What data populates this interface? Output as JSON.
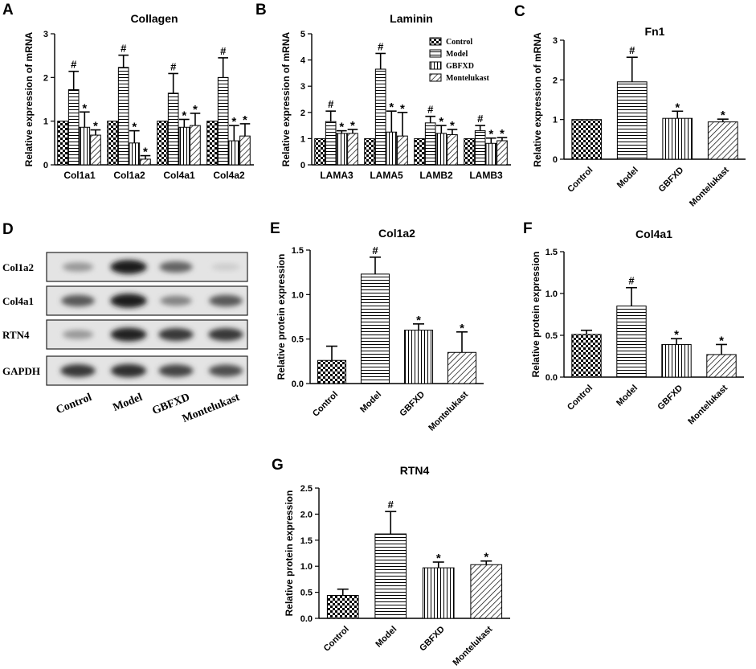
{
  "patterns": [
    "checker",
    "hlines",
    "vlines",
    "diag"
  ],
  "chart_data": [
    {
      "panel": "A",
      "type": "bar",
      "title": "Collagen",
      "ylabel": "Relative expression of mRNA",
      "ylim": [
        0,
        3
      ],
      "yticks": [
        "0",
        "1",
        "2",
        "3"
      ],
      "categories": [
        "Col1a1",
        "Col1a2",
        "Col4a1",
        "Col4a2"
      ],
      "series": [
        {
          "name": "Control",
          "values": [
            1.0,
            1.0,
            1.0,
            1.0
          ],
          "errors": [
            0,
            0,
            0,
            0
          ],
          "marks": [
            "",
            "",
            "",
            ""
          ]
        },
        {
          "name": "Model",
          "values": [
            1.72,
            2.23,
            1.64,
            2.0
          ],
          "errors": [
            0.42,
            0.28,
            0.45,
            0.45
          ],
          "marks": [
            "#",
            "#",
            "#",
            "#"
          ]
        },
        {
          "name": "GBFXD",
          "values": [
            0.86,
            0.5,
            0.86,
            0.55
          ],
          "errors": [
            0.35,
            0.28,
            0.18,
            0.35
          ],
          "marks": [
            "*",
            "*",
            "*",
            "*"
          ]
        },
        {
          "name": "Montelukast",
          "values": [
            0.68,
            0.13,
            0.9,
            0.66
          ],
          "errors": [
            0.12,
            0.08,
            0.28,
            0.28
          ],
          "marks": [
            "*",
            "*",
            "*",
            "*"
          ]
        }
      ]
    },
    {
      "panel": "B",
      "type": "bar",
      "title": "Laminin",
      "ylabel": "Relative expression of mRNA",
      "ylim": [
        0,
        5
      ],
      "yticks": [
        "0",
        "1",
        "2",
        "3",
        "4",
        "5"
      ],
      "categories": [
        "LAMA3",
        "LAMA5",
        "LAMB2",
        "LAMB3"
      ],
      "legend": [
        "Control",
        "Model",
        "GBFXD",
        "Montelukast"
      ],
      "series": [
        {
          "name": "Control",
          "values": [
            1.0,
            1.0,
            1.0,
            1.0
          ],
          "errors": [
            0,
            0,
            0,
            0
          ],
          "marks": [
            "",
            "",
            "",
            ""
          ]
        },
        {
          "name": "Model",
          "values": [
            1.65,
            3.65,
            1.6,
            1.3
          ],
          "errors": [
            0.4,
            0.6,
            0.25,
            0.2
          ],
          "marks": [
            "#",
            "#",
            "#",
            "#"
          ]
        },
        {
          "name": "GBFXD",
          "values": [
            1.2,
            1.25,
            1.2,
            0.82
          ],
          "errors": [
            0.1,
            0.8,
            0.3,
            0.2
          ],
          "marks": [
            "*",
            "*",
            "*",
            "*"
          ]
        },
        {
          "name": "Montelukast",
          "values": [
            1.2,
            1.1,
            1.15,
            0.92
          ],
          "errors": [
            0.15,
            0.9,
            0.2,
            0.12
          ],
          "marks": [
            "*",
            "*",
            "*",
            "*"
          ]
        }
      ]
    },
    {
      "panel": "C",
      "type": "bar",
      "title": "Fn1",
      "ylabel": "Relative expression of mRNA",
      "ylim": [
        0,
        3
      ],
      "yticks": [
        "0",
        "1",
        "2",
        "3"
      ],
      "categories": [
        "Control",
        "Model",
        "GBFXD",
        "Montelukast"
      ],
      "values": [
        1.0,
        1.95,
        1.03,
        0.94
      ],
      "errors": [
        0,
        0.62,
        0.18,
        0.07
      ],
      "marks": [
        "",
        "#",
        "*",
        "*"
      ]
    },
    {
      "panel": "E",
      "type": "bar",
      "title": "Col1a2",
      "ylabel": "Relative protein expression",
      "ylim": [
        0,
        1.5
      ],
      "yticks": [
        "0.0",
        "0.5",
        "1.0",
        "1.5"
      ],
      "categories": [
        "Control",
        "Model",
        "GBFXD",
        "Montelukast"
      ],
      "values": [
        0.26,
        1.23,
        0.6,
        0.35
      ],
      "errors": [
        0.16,
        0.19,
        0.07,
        0.23
      ],
      "marks": [
        "",
        "#",
        "*",
        "*"
      ]
    },
    {
      "panel": "F",
      "type": "bar",
      "title": "Col4a1",
      "ylabel": "Relative protein expression",
      "ylim": [
        0,
        1.5
      ],
      "yticks": [
        "0.0",
        "0.5",
        "1.0",
        "1.5"
      ],
      "categories": [
        "Control",
        "Model",
        "GBFXD",
        "Montelukast"
      ],
      "values": [
        0.51,
        0.85,
        0.39,
        0.27
      ],
      "errors": [
        0.05,
        0.22,
        0.07,
        0.12
      ],
      "marks": [
        "",
        "#",
        "*",
        "*"
      ]
    },
    {
      "panel": "G",
      "type": "bar",
      "title": "RTN4",
      "ylabel": "Relative protein expression",
      "ylim": [
        0,
        2.5
      ],
      "yticks": [
        "0.0",
        "0.5",
        "1.0",
        "1.5",
        "2.0",
        "2.5"
      ],
      "categories": [
        "Control",
        "Model",
        "GBFXD",
        "Montelukast"
      ],
      "values": [
        0.44,
        1.62,
        0.97,
        1.03
      ],
      "errors": [
        0.12,
        0.43,
        0.11,
        0.07
      ],
      "marks": [
        "",
        "#",
        "*",
        "*"
      ]
    }
  ],
  "blot": {
    "panel": "D",
    "rows": [
      "Col1a2",
      "Col4a1",
      "RTN4",
      "GAPDH"
    ],
    "lanes": [
      "Control",
      "Model",
      "GBFXD",
      "Montelukast"
    ],
    "intensity": [
      [
        0.35,
        0.95,
        0.6,
        0.1
      ],
      [
        0.65,
        0.95,
        0.45,
        0.65
      ],
      [
        0.35,
        0.9,
        0.8,
        0.8
      ],
      [
        0.8,
        0.85,
        0.75,
        0.7
      ]
    ]
  }
}
